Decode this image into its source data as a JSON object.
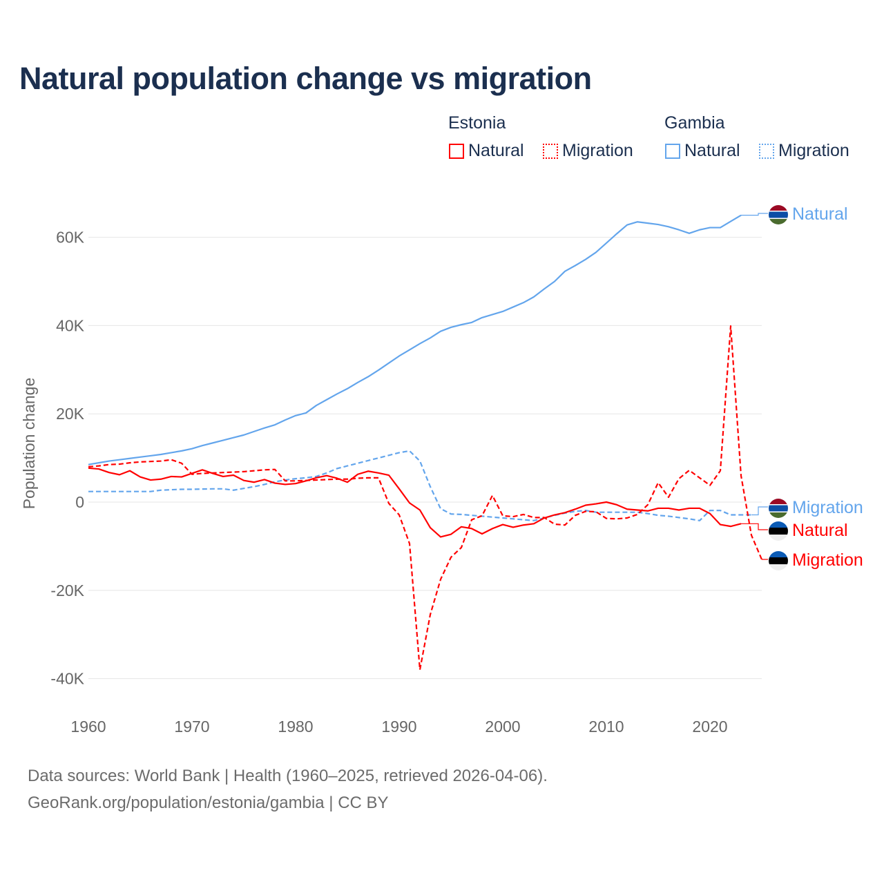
{
  "title": "Natural population change vs migration",
  "legend": {
    "groups": [
      {
        "country": "Estonia",
        "items": [
          "Natural",
          "Migration"
        ],
        "color": "#ff0000"
      },
      {
        "country": "Gambia",
        "items": [
          "Natural",
          "Migration"
        ],
        "color": "#63a5ec"
      }
    ]
  },
  "footer": {
    "line1": "Data sources: World Bank | Health (1960–2025, retrieved 2026-04-06).",
    "line2": "GeoRank.org/population/estonia/gambia | CC BY"
  },
  "chart_data": {
    "type": "line",
    "title": "Natural population change vs migration",
    "xlabel": "",
    "ylabel": "Population change",
    "xlim": [
      1960,
      2025
    ],
    "ylim": [
      -45000,
      70000
    ],
    "x_ticks": [
      "1960",
      "1970",
      "1980",
      "1990",
      "2000",
      "2010",
      "2020"
    ],
    "y_ticks": [
      {
        "v": 60000,
        "label": "60K"
      },
      {
        "v": 40000,
        "label": "40K"
      },
      {
        "v": 20000,
        "label": "20K"
      },
      {
        "v": 0,
        "label": "0"
      },
      {
        "v": -20000,
        "label": "-20K"
      },
      {
        "v": -40000,
        "label": "-40K"
      }
    ],
    "grid": true,
    "series": [
      {
        "name": "Gambia Natural",
        "label": "Natural",
        "country": "Gambia",
        "color": "#63a5ec",
        "dashed": false,
        "start": 1960,
        "values_k": [
          8.5,
          8.9,
          9.3,
          9.6,
          9.9,
          10.2,
          10.5,
          10.8,
          11.2,
          11.6,
          12.1,
          12.8,
          13.4,
          14.0,
          14.6,
          15.2,
          16.0,
          16.8,
          17.5,
          18.6,
          19.6,
          20.2,
          21.9,
          23.2,
          24.5,
          25.7,
          27.1,
          28.4,
          29.9,
          31.5,
          33.1,
          34.5,
          35.9,
          37.2,
          38.7,
          39.6,
          40.2,
          40.7,
          41.8,
          42.5,
          43.2,
          44.2,
          45.2,
          46.5,
          48.3,
          50.0,
          52.3,
          53.6,
          55.0,
          56.6,
          58.7,
          60.8,
          62.8,
          63.5,
          63.2,
          62.9,
          62.4,
          61.7,
          60.9,
          61.7,
          62.2,
          62.2,
          63.6,
          65.0
        ]
      },
      {
        "name": "Gambia Migration",
        "label": "Migration",
        "country": "Gambia",
        "color": "#63a5ec",
        "dashed": true,
        "start": 1960,
        "values_k": [
          2.4,
          2.4,
          2.4,
          2.4,
          2.4,
          2.4,
          2.4,
          2.7,
          2.8,
          2.9,
          2.9,
          2.95,
          3.0,
          3.0,
          2.7,
          3.1,
          3.5,
          4.0,
          4.6,
          5.0,
          5.3,
          5.5,
          5.8,
          6.6,
          7.6,
          8.2,
          8.8,
          9.4,
          10.0,
          10.6,
          11.2,
          11.6,
          9.3,
          3.5,
          -1.5,
          -2.7,
          -2.8,
          -3.0,
          -3.2,
          -3.4,
          -3.6,
          -3.8,
          -4.0,
          -4.2,
          -3.6,
          -3.0,
          -2.5,
          -2.1,
          -1.9,
          -2.3,
          -2.3,
          -2.3,
          -2.3,
          -2.3,
          -2.6,
          -3.0,
          -3.2,
          -3.5,
          -3.8,
          -4.2,
          -1.9,
          -1.9,
          -2.9,
          -2.9,
          -2.9
        ]
      },
      {
        "name": "Estonia Natural",
        "label": "Natural",
        "country": "Estonia",
        "color": "#ff0000",
        "dashed": false,
        "start": 1960,
        "values_k": [
          7.7,
          7.5,
          6.7,
          6.2,
          7.1,
          5.7,
          5.0,
          5.2,
          5.8,
          5.7,
          6.5,
          7.3,
          6.5,
          5.8,
          6.1,
          4.9,
          4.5,
          5.1,
          4.3,
          4.0,
          4.2,
          4.8,
          5.5,
          6.0,
          5.4,
          4.5,
          6.3,
          7.0,
          6.6,
          6.1,
          3.0,
          -0.2,
          -1.8,
          -5.8,
          -7.9,
          -7.3,
          -5.6,
          -6.0,
          -7.2,
          -6.0,
          -5.1,
          -5.7,
          -5.2,
          -4.9,
          -3.6,
          -2.9,
          -2.4,
          -1.6,
          -0.7,
          -0.4,
          0.0,
          -0.6,
          -1.6,
          -1.8,
          -2.0,
          -1.4,
          -1.4,
          -1.8,
          -1.4,
          -1.4,
          -2.6,
          -5.1,
          -5.5,
          -4.9
        ]
      },
      {
        "name": "Estonia Migration",
        "label": "Migration",
        "country": "Estonia",
        "color": "#ff0000",
        "dashed": true,
        "start": 1960,
        "values_k": [
          8.0,
          8.2,
          8.5,
          8.6,
          8.9,
          9.1,
          9.2,
          9.3,
          9.6,
          8.8,
          6.3,
          6.5,
          6.6,
          6.7,
          6.8,
          6.9,
          7.1,
          7.3,
          7.4,
          4.8,
          4.8,
          4.9,
          5.0,
          5.1,
          5.2,
          5.2,
          5.4,
          5.5,
          5.5,
          -0.3,
          -2.9,
          -9.4,
          -38.0,
          -25.5,
          -17.5,
          -12.5,
          -10.3,
          -4.0,
          -3.1,
          1.5,
          -3.1,
          -3.3,
          -2.8,
          -3.5,
          -3.5,
          -5.0,
          -5.2,
          -3.0,
          -2.1,
          -2.2,
          -3.7,
          -3.8,
          -3.6,
          -2.8,
          -0.6,
          4.4,
          1.1,
          5.3,
          7.2,
          5.5,
          3.8,
          7.1,
          39.9,
          6.0,
          -7.5,
          -13.0
        ]
      }
    ]
  }
}
